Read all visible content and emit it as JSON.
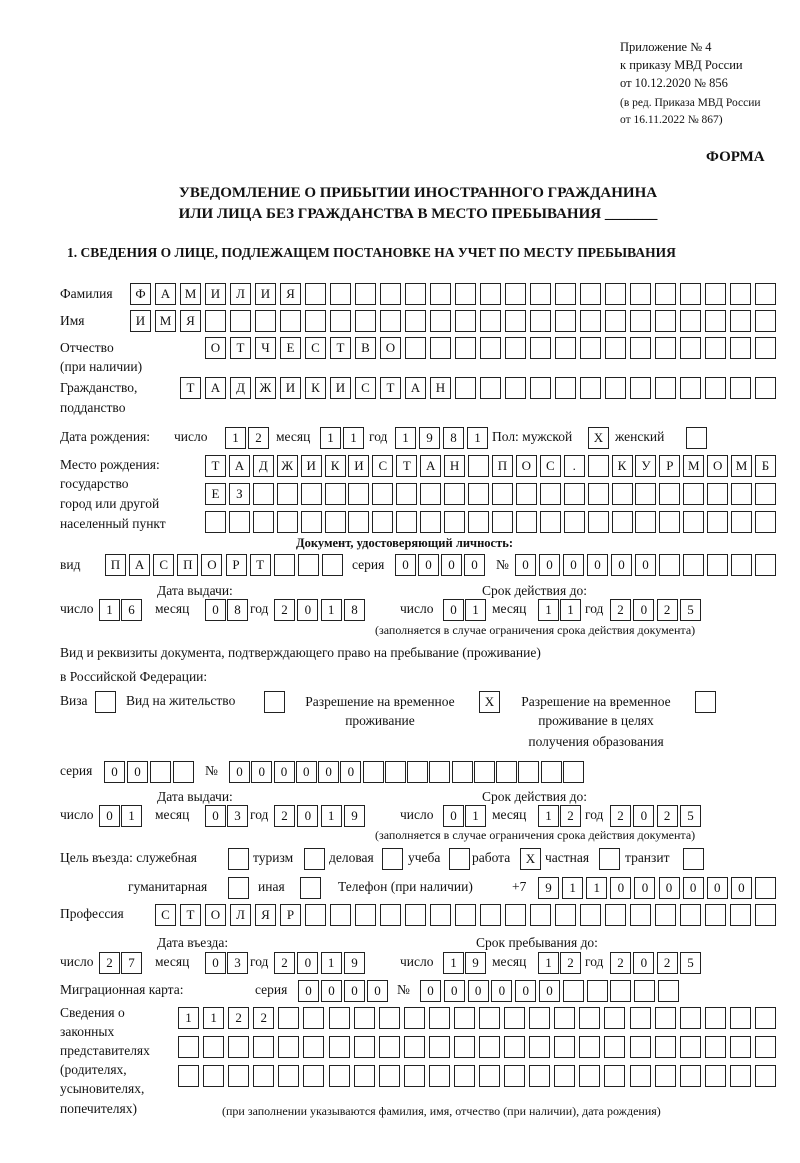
{
  "header": {
    "appendix": "Приложение № 4",
    "order": "к приказу МВД России",
    "order_date": "от 10.12.2020 № 856",
    "edition": "(в ред. Приказа МВД России",
    "edition_date": "от 16.11.2022 № 867)",
    "form_label": "ФОРМА",
    "title_line1": "УВЕДОМЛЕНИЕ О ПРИБЫТИИ ИНОСТРАННОГО ГРАЖДАНИНА",
    "title_line2": "ИЛИ ЛИЦА БЕЗ ГРАЖДАНСТВА В МЕСТО ПРЕБЫВАНИЯ _______",
    "section1": "1. СВЕДЕНИЯ О ЛИЦЕ, ПОДЛЕЖАЩЕМ ПОСТАНОВКЕ НА УЧЕТ ПО МЕСТУ ПРЕБЫВАНИЯ"
  },
  "labels": {
    "surname": "Фамилия",
    "name": "Имя",
    "patronymic": "Отчество",
    "patronymic_note": "(при наличии)",
    "citizenship": "Гражданство,",
    "citizenship2": "подданство",
    "dob": "Дата рождения:",
    "day": "число",
    "month": "месяц",
    "year": "год",
    "sex_male": "Пол: мужской",
    "sex_female": "женский",
    "birthplace": "Место рождения:",
    "birthplace2": "государство",
    "birthplace3": "город или другой",
    "birthplace4": "населенный пункт",
    "id_doc": "Документ, удостоверяющий личность:",
    "kind": "вид",
    "series": "серия",
    "number": "№",
    "issue_date": "Дата выдачи:",
    "valid_until": "Срок действия до:",
    "validity_note": "(заполняется в случае ограничения срока действия документа)",
    "right_doc1": "Вид и реквизиты документа, подтверждающего право на пребывание (проживание)",
    "right_doc2": "в Российской Федерации:",
    "visa": "Виза",
    "residence": "Вид на жительство",
    "temp_permit1": "Разрешение на временное",
    "temp_permit2": "проживание",
    "edu_permit1": "Разрешение на временное",
    "edu_permit2": "проживание в целях",
    "edu_permit3": "получения образования",
    "purpose": "Цель въезда: служебная",
    "tourism": "туризм",
    "business": "деловая",
    "study": "учеба",
    "work": "работа",
    "private": "частная",
    "transit": "транзит",
    "humanitarian": "гуманитарная",
    "other": "иная",
    "phone": "Телефон (при наличии)",
    "phone_prefix": "+7",
    "profession": "Профессия",
    "entry_date": "Дата въезда:",
    "stay_until": "Срок пребывания до:",
    "migration_card": "Миграционная карта:",
    "reps1": "Сведения о",
    "reps2": "законных",
    "reps3": "представителях",
    "reps4": "(родителях,",
    "reps5": "усыновителях,",
    "reps6": "попечителях)",
    "reps_note": "(при заполнении указываются фамилия, имя, отчество (при наличии), дата рождения)"
  },
  "person": {
    "surname": "ФАМИЛИЯ",
    "name": "ИМЯ",
    "patronymic": "ОТЧЕСТВО",
    "citizenship": "ТАДЖИКИСТАН",
    "dob_day": "12",
    "dob_month": "11",
    "dob_year": "1981",
    "sex_male": "X",
    "sex_female": "",
    "birthplace_1": "ТАДЖИКИСТАН ПОС. КУРМОМБ",
    "birthplace_2": "ЕЗ",
    "birthplace_3": ""
  },
  "id_document": {
    "kind": "ПАСПОРТ",
    "series": "0000",
    "number": "000000",
    "issue_day": "16",
    "issue_month": "08",
    "issue_year": "2018",
    "valid_day": "01",
    "valid_month": "11",
    "valid_year": "2025"
  },
  "stay_document": {
    "visa": "",
    "residence": "",
    "temp_permit": "X",
    "edu_permit": "",
    "series": "00",
    "number": "000000",
    "issue_day": "01",
    "issue_month": "03",
    "issue_year": "2019",
    "valid_day": "01",
    "valid_month": "12",
    "valid_year": "2025"
  },
  "purpose": {
    "official": "",
    "tourism": "",
    "business": "",
    "study": "",
    "work": "X",
    "private": "",
    "transit": "",
    "humanitarian": "",
    "other": ""
  },
  "phone": "911000000",
  "profession": "СТОЛЯР",
  "entry": {
    "day": "27",
    "month": "03",
    "year": "2019",
    "stay_day": "19",
    "stay_month": "12",
    "stay_year": "2025"
  },
  "migration_card": {
    "series": "0000",
    "number": "000000"
  },
  "representatives": {
    "line1": "1122",
    "line2": "",
    "line3": ""
  }
}
